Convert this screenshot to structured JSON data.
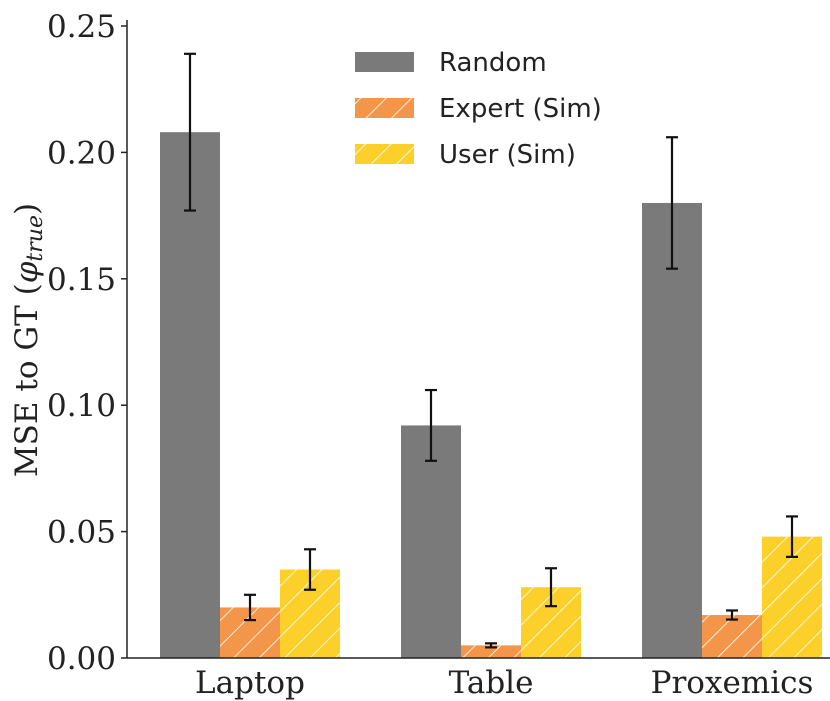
{
  "chart_data": {
    "type": "bar",
    "categories": [
      "Laptop",
      "Table",
      "Proxemics"
    ],
    "series": [
      {
        "name": "Random",
        "values": [
          0.208,
          0.092,
          0.18
        ],
        "errors": [
          0.031,
          0.014,
          0.026
        ],
        "color": "#7a7a7a",
        "hatch": false
      },
      {
        "name": "Expert (Sim)",
        "values": [
          0.02,
          0.005,
          0.017
        ],
        "errors": [
          0.005,
          0.0008,
          0.0018
        ],
        "color": "#f4964a",
        "hatch": true
      },
      {
        "name": "User (Sim)",
        "values": [
          0.035,
          0.028,
          0.048
        ],
        "errors": [
          0.008,
          0.0075,
          0.008
        ],
        "color": "#fbd02a",
        "hatch": true
      }
    ],
    "ylabel": {
      "main": "MSE to GT (",
      "symbol": "φ",
      "subscript": "true",
      "close": ")"
    },
    "xlabel": "",
    "ylim": [
      0,
      0.25
    ],
    "yticks": [
      "0.00",
      "0.05",
      "0.10",
      "0.15",
      "0.20",
      "0.25"
    ],
    "ytick_values": [
      0,
      0.05,
      0.1,
      0.15,
      0.2,
      0.25
    ],
    "legend_position": "top-center",
    "grid": false
  }
}
